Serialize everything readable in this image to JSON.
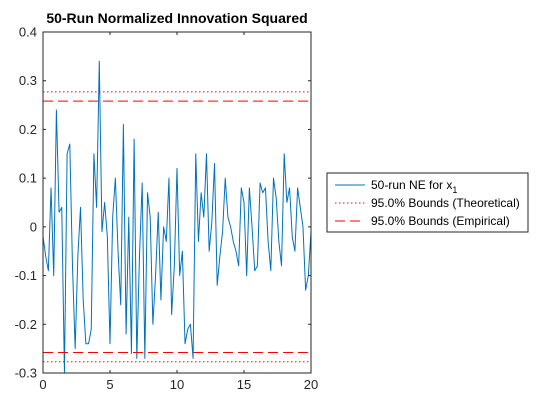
{
  "chart_data": {
    "type": "line",
    "title": "50-Run Normalized Innovation Squared",
    "xlabel": "",
    "ylabel": "",
    "xlim": [
      0,
      20
    ],
    "ylim": [
      -0.3,
      0.4
    ],
    "xticks": [
      0,
      5,
      10,
      15,
      20
    ],
    "yticks": [
      -0.3,
      -0.2,
      -0.1,
      0,
      0.1,
      0.2,
      0.3,
      0.4
    ],
    "xtick_labels": [
      "0",
      "5",
      "10",
      "15",
      "20"
    ],
    "ytick_labels": [
      "-0.3",
      "-0.2",
      "-0.1",
      "0",
      "0.1",
      "0.2",
      "0.3",
      "0.4"
    ],
    "grid": false,
    "legend_position": "right-outside",
    "series": [
      {
        "name": "50-run NE for x",
        "name_subscript": "1",
        "style": "solid",
        "color": "#0072BD",
        "x": [
          0,
          0.2,
          0.4,
          0.6,
          0.8,
          1.0,
          1.2,
          1.4,
          1.6,
          1.8,
          2.0,
          2.2,
          2.4,
          2.6,
          2.8,
          3.0,
          3.2,
          3.4,
          3.6,
          3.8,
          4.0,
          4.2,
          4.4,
          4.6,
          4.8,
          5.0,
          5.2,
          5.4,
          5.6,
          5.8,
          6.0,
          6.2,
          6.4,
          6.6,
          6.8,
          7.0,
          7.2,
          7.4,
          7.6,
          7.8,
          8.0,
          8.2,
          8.4,
          8.6,
          8.8,
          9.0,
          9.2,
          9.4,
          9.6,
          9.8,
          10.0,
          10.2,
          10.4,
          10.6,
          10.8,
          11.0,
          11.2,
          11.4,
          11.6,
          11.8,
          12.0,
          12.2,
          12.4,
          12.6,
          12.8,
          13.0,
          13.2,
          13.4,
          13.6,
          13.8,
          14.0,
          14.2,
          14.4,
          14.6,
          14.8,
          15.0,
          15.2,
          15.4,
          15.6,
          15.8,
          16.0,
          16.2,
          16.4,
          16.6,
          16.8,
          17.0,
          17.2,
          17.4,
          17.6,
          17.8,
          18.0,
          18.2,
          18.4,
          18.6,
          18.8,
          19.0,
          19.2,
          19.4,
          19.6,
          19.8,
          20.0
        ],
        "y": [
          -0.02,
          -0.06,
          -0.09,
          0.08,
          -0.1,
          0.24,
          0.03,
          0.04,
          -0.3,
          0.15,
          0.17,
          -0.08,
          -0.25,
          -0.06,
          0.04,
          -0.15,
          -0.24,
          -0.24,
          -0.21,
          0.15,
          0.04,
          0.34,
          -0.01,
          0.05,
          -0.02,
          -0.24,
          0.02,
          0.1,
          -0.05,
          -0.16,
          0.21,
          -0.22,
          0.02,
          -0.26,
          0.18,
          -0.27,
          -0.06,
          0.09,
          -0.27,
          0.07,
          0.02,
          -0.2,
          -0.1,
          0.03,
          -0.15,
          0.0,
          -0.03,
          0.1,
          -0.18,
          -0.08,
          0.12,
          -0.1,
          -0.05,
          -0.24,
          -0.21,
          -0.2,
          -0.27,
          0.15,
          -0.03,
          0.07,
          0.02,
          0.15,
          -0.05,
          0.01,
          0.13,
          -0.12,
          -0.06,
          -0.01,
          0.1,
          0.02,
          0.0,
          -0.03,
          -0.05,
          -0.08,
          0.08,
          0.05,
          -0.1,
          0.08,
          0.0,
          -0.09,
          -0.08,
          0.09,
          0.07,
          0.08,
          -0.03,
          -0.09,
          0.1,
          0.06,
          -0.03,
          -0.08,
          0.15,
          0.05,
          0.08,
          -0.02,
          -0.05,
          0.08,
          0.04,
          0.0,
          -0.13,
          -0.1,
          -0.01
        ]
      },
      {
        "name": "95.0% Bounds (Theoretical)",
        "style": "dotted",
        "color": "#FF0000",
        "upper": 0.277,
        "lower": -0.277
      },
      {
        "name": "95.0% Bounds (Empirical)",
        "style": "dashed",
        "color": "#FF0000",
        "upper": 0.258,
        "lower": -0.258
      }
    ]
  }
}
